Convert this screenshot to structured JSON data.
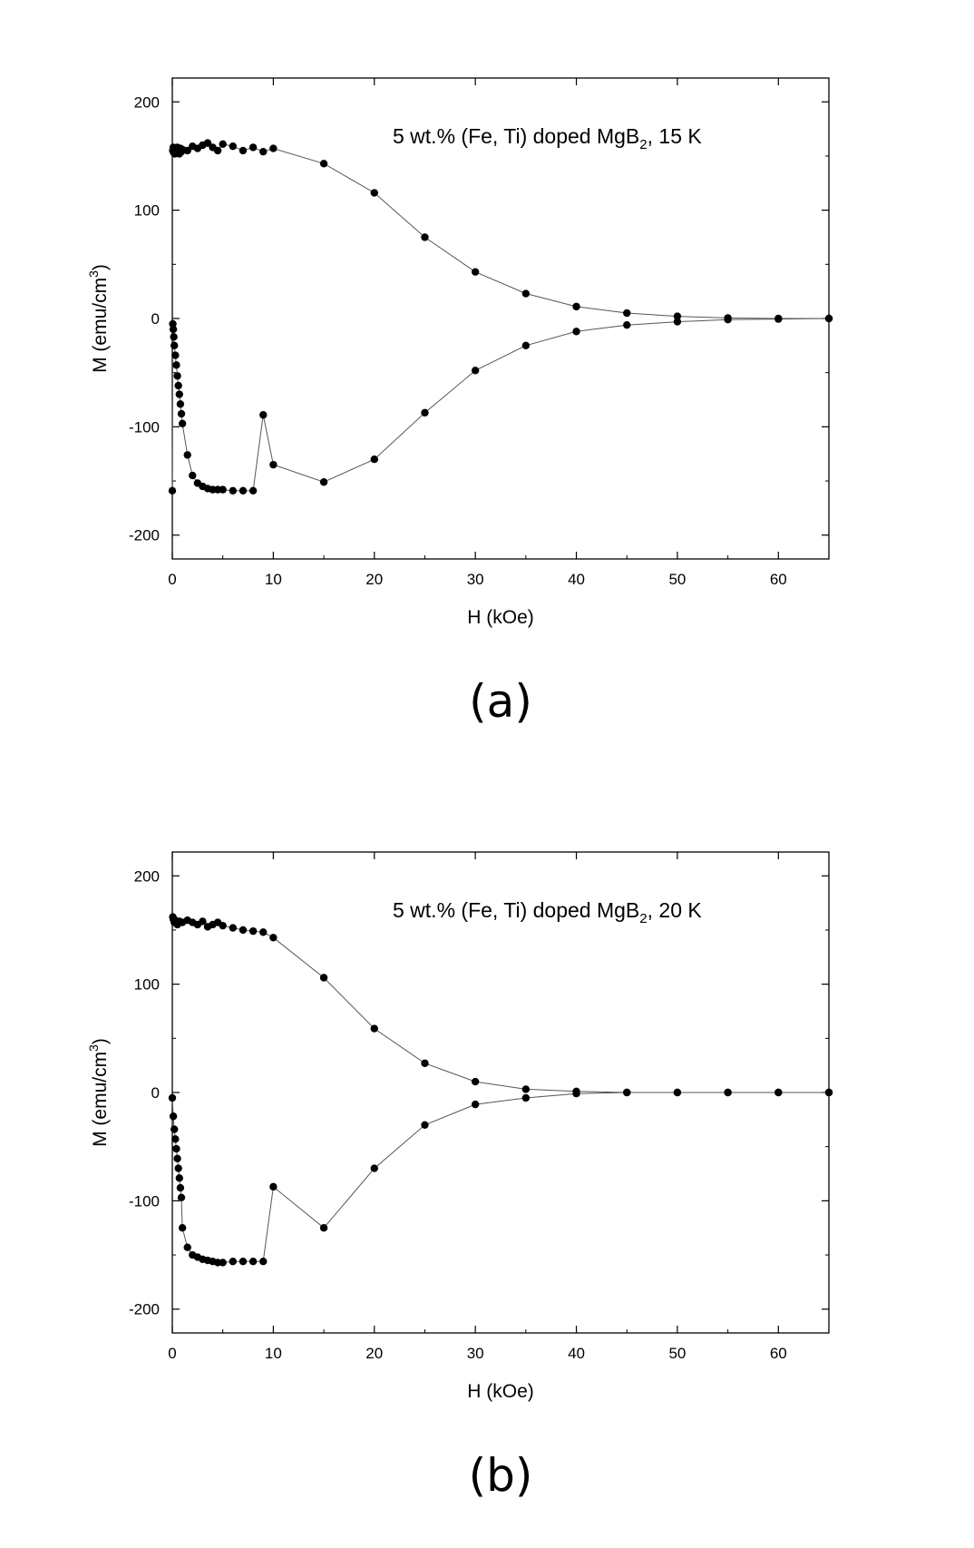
{
  "chart_data": [
    {
      "type": "scatter",
      "panel_label": "(a)",
      "annotation": {
        "prefix": "5 wt.% (Fe, Ti) doped MgB",
        "subscript": "2",
        "suffix": ", 15 K"
      },
      "xlabel": "H (kOe)",
      "ylabel": {
        "prefix": "M (emu/cm",
        "superscript": "3",
        "suffix": ")"
      },
      "xlim": [
        0,
        65
      ],
      "ylim": [
        -222,
        222
      ],
      "xticks": [
        0,
        10,
        20,
        30,
        40,
        50,
        60
      ],
      "yticks": [
        -200,
        -100,
        0,
        100,
        200
      ],
      "grid": false,
      "marker_color": "#000000",
      "line_color": "#555555",
      "series": [
        {
          "x": [
            0.05,
            0.1,
            0.15,
            0.2,
            0.25,
            0.3,
            0.4,
            0.5,
            0.6,
            0.7,
            0.8,
            0.9,
            1.0,
            1.5,
            2.0,
            2.5,
            3.0,
            3.5,
            4.0,
            4.5,
            5.0,
            6.0,
            7.0,
            8.0,
            9.0,
            10,
            15,
            20,
            25,
            30,
            35,
            40,
            45,
            50,
            55,
            60,
            65
          ],
          "y": [
            155,
            158,
            153,
            157,
            152,
            156,
            154,
            158,
            155,
            152,
            157,
            154,
            156,
            155,
            159,
            157,
            160,
            162,
            158,
            155,
            161,
            159,
            155,
            158,
            154,
            157,
            143,
            116,
            75,
            43,
            23,
            11,
            5,
            2,
            0.5,
            0,
            0
          ]
        },
        {
          "x": [
            65,
            60,
            55,
            50,
            45,
            40,
            35,
            30,
            25,
            20,
            15,
            10,
            9,
            8,
            7,
            6,
            5,
            4.5,
            4,
            3.5,
            3,
            2.5,
            2,
            1.5,
            1.0,
            0.9,
            0.8,
            0.7,
            0.6,
            0.5,
            0.4,
            0.3,
            0.2,
            0.15,
            0.1,
            0.05,
            0
          ],
          "y": [
            0,
            -0.5,
            -1,
            -3,
            -6,
            -12,
            -25,
            -48,
            -87,
            -130,
            -151,
            -135,
            -89,
            -159,
            -159,
            -159,
            -158,
            -158,
            -158,
            -157,
            -155,
            -152,
            -145,
            -126,
            -97,
            -88,
            -79,
            -70,
            -62,
            -53,
            -43,
            -34,
            -25,
            -17,
            -10,
            -5,
            -159
          ]
        }
      ]
    },
    {
      "type": "scatter",
      "panel_label": "(b)",
      "annotation": {
        "prefix": "5 wt.% (Fe, Ti) doped MgB",
        "subscript": "2",
        "suffix": ", 20 K"
      },
      "xlabel": "H (kOe)",
      "ylabel": {
        "prefix": "M (emu/cm",
        "superscript": "3",
        "suffix": ")"
      },
      "xlim": [
        0,
        65
      ],
      "ylim": [
        -222,
        222
      ],
      "xticks": [
        0,
        10,
        20,
        30,
        40,
        50,
        60
      ],
      "yticks": [
        -200,
        -100,
        0,
        100,
        200
      ],
      "grid": false,
      "marker_color": "#000000",
      "line_color": "#555555",
      "series": [
        {
          "x": [
            0.05,
            0.1,
            0.2,
            0.3,
            0.5,
            0.7,
            1.0,
            1.5,
            2.0,
            2.5,
            3.0,
            3.5,
            4.0,
            4.5,
            5.0,
            6.0,
            7.0,
            8.0,
            9.0,
            10,
            15,
            20,
            25,
            30,
            35,
            40,
            45,
            50,
            55,
            60,
            65
          ],
          "y": [
            162,
            160,
            157,
            159,
            155,
            158,
            157,
            159,
            157,
            155,
            158,
            153,
            155,
            157,
            154,
            152,
            150,
            149,
            148,
            143,
            106,
            59,
            27,
            10,
            3,
            1,
            0,
            0,
            0,
            0,
            0
          ]
        },
        {
          "x": [
            65,
            60,
            55,
            50,
            45,
            40,
            35,
            30,
            25,
            20,
            15,
            10,
            9,
            8,
            7,
            6,
            5,
            4.5,
            4,
            3.5,
            3,
            2.5,
            2,
            1.5,
            1.0,
            0.9,
            0.8,
            0.7,
            0.6,
            0.5,
            0.4,
            0.3,
            0.2,
            0.1,
            0
          ],
          "y": [
            0,
            0,
            0,
            0,
            0,
            -1,
            -5,
            -11,
            -30,
            -70,
            -125,
            -87,
            -156,
            -156,
            -156,
            -156,
            -157,
            -157,
            -156,
            -155,
            -154,
            -152,
            -150,
            -143,
            -125,
            -97,
            -88,
            -79,
            -70,
            -61,
            -52,
            -43,
            -34,
            -22,
            -5
          ]
        }
      ]
    }
  ]
}
